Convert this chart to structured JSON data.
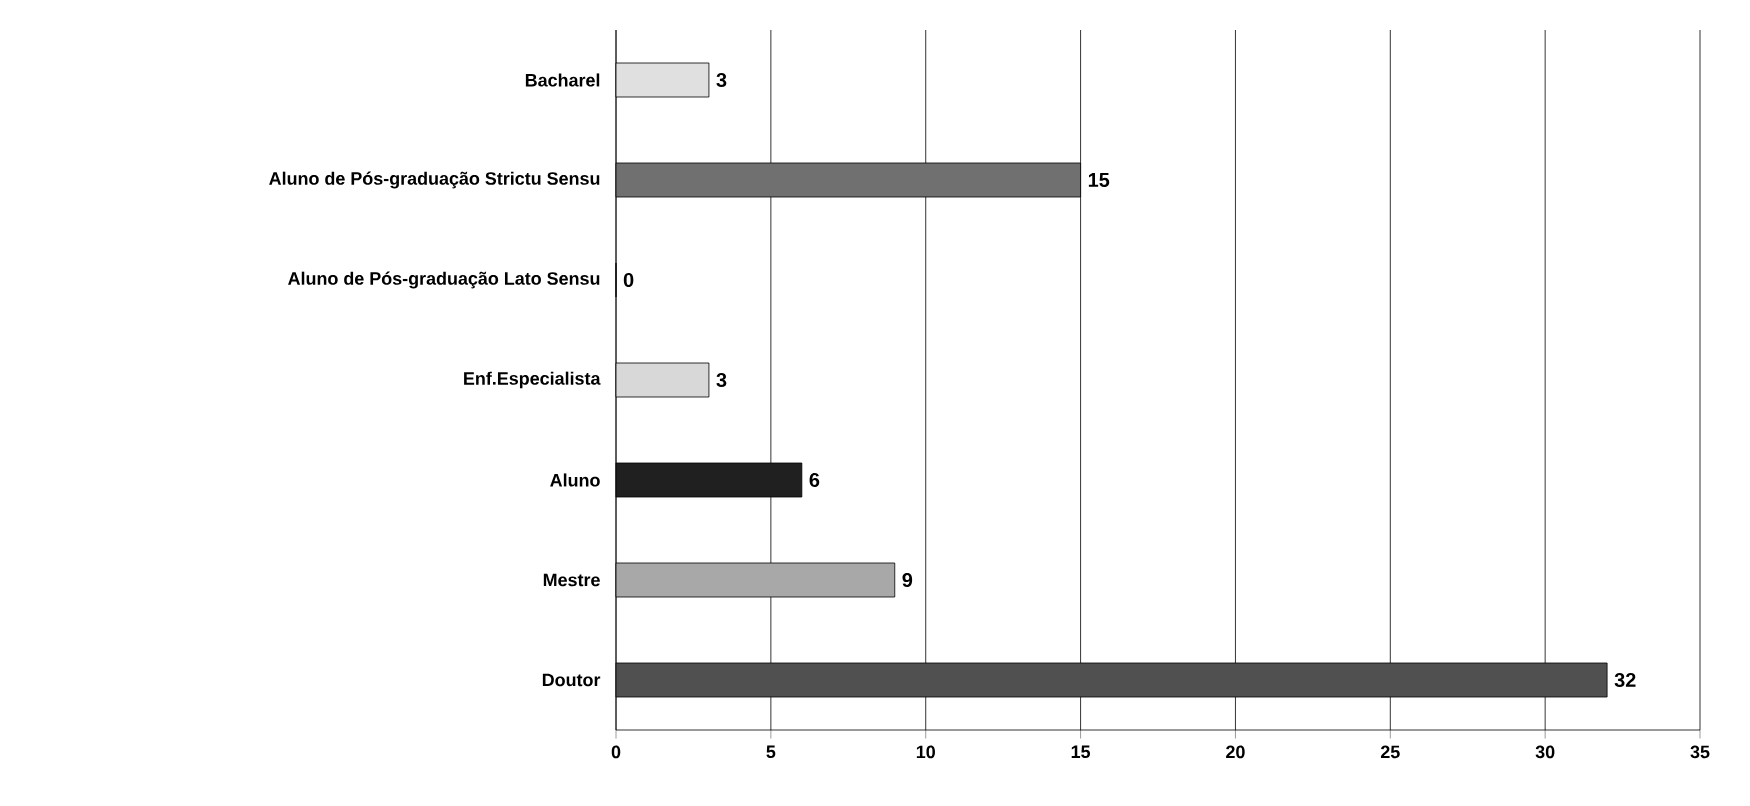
{
  "chart_data": {
    "type": "bar",
    "orientation": "horizontal",
    "categories": [
      "Bacharel",
      "Aluno de Pós-graduação Strictu Sensu",
      "Aluno de Pós-graduação Lato Sensu",
      "Enf.Especialista",
      "Aluno",
      "Mestre",
      "Doutor"
    ],
    "values": [
      3,
      15,
      0,
      3,
      6,
      9,
      32
    ],
    "colors": [
      "#e0e0e0",
      "#707070",
      "#909090",
      "#d8d8d8",
      "#202020",
      "#a8a8a8",
      "#505050"
    ],
    "xlim": [
      0,
      35
    ],
    "xticks": [
      0,
      5,
      10,
      15,
      20,
      25,
      30,
      35
    ],
    "grid": "x",
    "data_labels": true
  }
}
